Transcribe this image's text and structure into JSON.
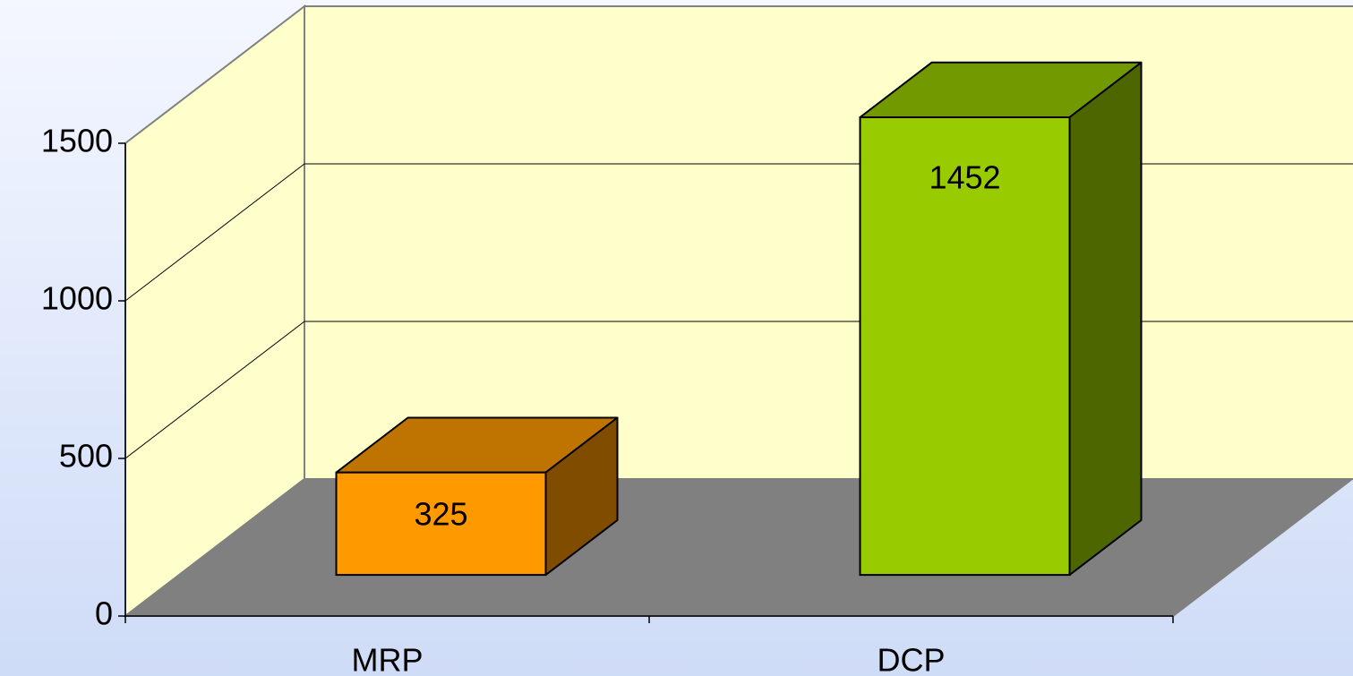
{
  "chart_data": {
    "type": "bar3d",
    "categories": [
      "MRP",
      "DCP"
    ],
    "values": [
      325,
      1452
    ],
    "colors": [
      "#ff9900",
      "#99cc00"
    ],
    "ylim": [
      0,
      1500
    ],
    "yticks": [
      0,
      500,
      1000,
      1500
    ],
    "grid": true
  }
}
